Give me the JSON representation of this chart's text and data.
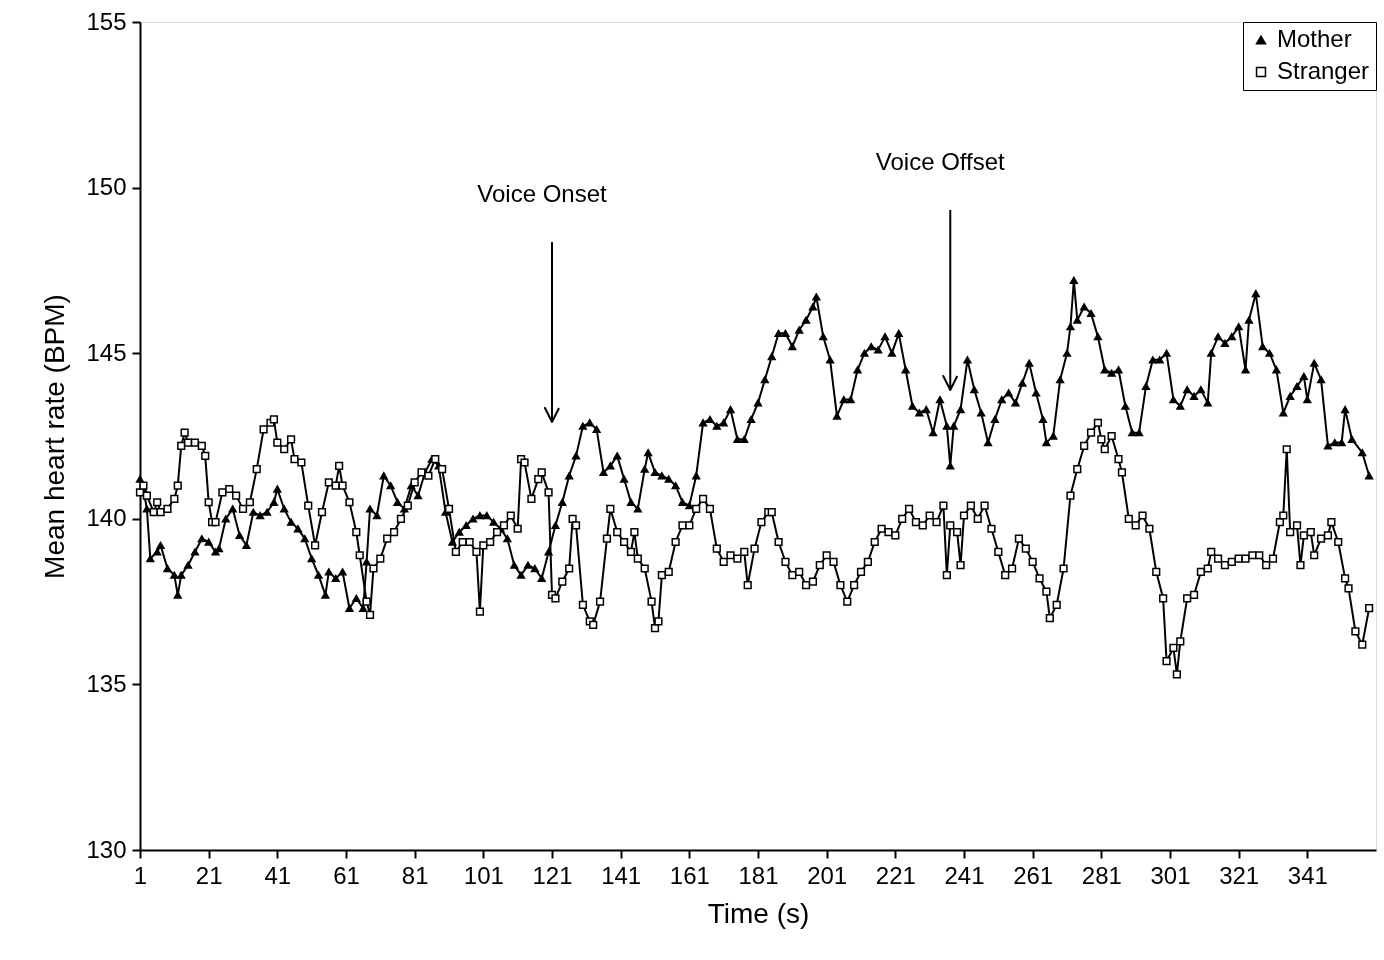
{
  "chart_data": {
    "type": "line",
    "xlabel": "Time (s)",
    "ylabel": "Mean heart rate (BPM)",
    "xlim": [
      1,
      361
    ],
    "ylim": [
      130,
      155
    ],
    "yticks": [
      130,
      135,
      140,
      145,
      150,
      155
    ],
    "xticks": [
      1,
      21,
      41,
      61,
      81,
      101,
      121,
      141,
      161,
      181,
      201,
      221,
      241,
      261,
      281,
      301,
      321,
      341
    ],
    "grid": false,
    "legend": "top right",
    "line_style": "solid",
    "ref_lines": [
      {
        "axis": "x",
        "value": 121,
        "label": "Voice Onset"
      },
      {
        "axis": "x",
        "value": 237,
        "label": "Voice Offset"
      }
    ],
    "series": [
      {
        "name": "Mother",
        "color": "#000000",
        "marker": "triangle",
        "x": [
          1,
          2,
          3,
          4,
          6,
          7,
          9,
          11,
          12,
          13,
          15,
          17,
          19,
          21,
          23,
          24,
          26,
          28,
          30,
          32,
          34,
          36,
          38,
          40,
          41,
          43,
          45,
          47,
          49,
          51,
          53,
          55,
          56,
          58,
          60,
          62,
          64,
          66,
          67,
          68,
          70,
          72,
          74,
          76,
          78,
          80,
          82,
          84,
          86,
          88,
          90,
          92,
          94,
          96,
          98,
          100,
          102,
          104,
          106,
          108,
          110,
          112,
          114,
          116,
          118,
          120,
          122,
          124,
          126,
          128,
          130,
          132,
          134,
          136,
          138,
          140,
          142,
          144,
          146,
          148,
          149,
          151,
          153,
          155,
          157,
          159,
          161,
          163,
          165,
          167,
          169,
          171,
          173,
          175,
          177,
          179,
          181,
          183,
          185,
          187,
          189,
          191,
          193,
          195,
          197,
          198,
          200,
          202,
          204,
          206,
          208,
          210,
          212,
          214,
          216,
          218,
          220,
          222,
          224,
          226,
          228,
          230,
          232,
          234,
          236,
          237,
          238,
          240,
          242,
          244,
          246,
          248,
          250,
          252,
          254,
          256,
          258,
          260,
          262,
          264,
          265,
          267,
          269,
          271,
          272,
          273,
          274,
          276,
          278,
          280,
          282,
          284,
          286,
          288,
          290,
          292,
          294,
          296,
          298,
          300,
          302,
          304,
          306,
          308,
          310,
          312,
          313,
          315,
          317,
          319,
          321,
          323,
          324,
          326,
          328,
          330,
          332,
          334,
          336,
          338,
          340,
          341,
          343,
          345,
          347,
          349,
          351,
          352,
          354,
          357,
          359
        ],
        "values": [
          141.2,
          140.9,
          140.3,
          138.8,
          139.0,
          139.2,
          138.5,
          138.3,
          137.7,
          138.3,
          138.6,
          139.0,
          139.4,
          139.3,
          139.0,
          139.1,
          140.0,
          140.3,
          139.5,
          139.2,
          140.2,
          140.1,
          140.2,
          140.5,
          140.9,
          140.3,
          139.9,
          139.7,
          139.4,
          138.8,
          138.3,
          137.7,
          138.4,
          138.2,
          138.4,
          137.3,
          137.6,
          137.3,
          138.7,
          140.3,
          140.1,
          141.3,
          141.0,
          140.5,
          140.3,
          141.0,
          140.7,
          141.4,
          141.8,
          141.6,
          140.2,
          139.3,
          139.6,
          139.8,
          140.0,
          140.1,
          140.1,
          139.9,
          139.7,
          139.4,
          138.6,
          138.3,
          138.6,
          138.5,
          138.2,
          139.0,
          139.8,
          140.5,
          141.3,
          141.9,
          142.8,
          142.9,
          142.7,
          141.4,
          141.6,
          141.9,
          141.2,
          140.5,
          140.3,
          141.5,
          142.0,
          141.4,
          141.3,
          141.2,
          141.0,
          140.5,
          140.4,
          141.3,
          142.9,
          143.0,
          142.8,
          142.9,
          143.3,
          142.4,
          142.4,
          143.0,
          143.5,
          144.2,
          144.9,
          145.6,
          145.6,
          145.2,
          145.7,
          146.0,
          146.4,
          146.7,
          145.5,
          144.8,
          143.1,
          143.6,
          143.6,
          144.5,
          145.0,
          145.2,
          145.1,
          145.5,
          145.0,
          145.6,
          144.5,
          143.4,
          143.2,
          143.3,
          142.6,
          143.6,
          142.8,
          141.6,
          142.8,
          143.3,
          144.8,
          143.9,
          143.2,
          142.3,
          143.0,
          143.6,
          143.8,
          143.5,
          144.1,
          144.7,
          143.8,
          143.0,
          142.3,
          142.5,
          144.2,
          145.0,
          145.8,
          147.2,
          146.0,
          146.4,
          146.2,
          145.5,
          144.5,
          144.4,
          144.5,
          143.4,
          142.6,
          142.6,
          144.0,
          144.8,
          144.8,
          145.0,
          143.6,
          143.4,
          143.9,
          143.7,
          143.9,
          143.5,
          145.0,
          145.5,
          145.3,
          145.5,
          145.8,
          144.5,
          146.0,
          146.8,
          145.2,
          145.0,
          144.5,
          143.2,
          143.7,
          144.0,
          144.3,
          143.6,
          144.7,
          144.2,
          142.2,
          142.3,
          142.3,
          143.3,
          142.4,
          142.0,
          141.3
        ]
      },
      {
        "name": "Stranger",
        "color": "#000000",
        "marker": "square",
        "x": [
          1,
          2,
          3,
          5,
          6,
          7,
          9,
          11,
          12,
          13,
          14,
          15,
          17,
          19,
          20,
          21,
          22,
          23,
          25,
          27,
          29,
          31,
          33,
          35,
          37,
          39,
          40,
          41,
          43,
          45,
          46,
          48,
          50,
          52,
          54,
          56,
          58,
          59,
          60,
          62,
          64,
          65,
          67,
          68,
          69,
          71,
          73,
          75,
          77,
          79,
          81,
          83,
          85,
          87,
          89,
          91,
          93,
          95,
          97,
          99,
          100,
          101,
          103,
          105,
          107,
          109,
          111,
          112,
          113,
          115,
          117,
          118,
          120,
          121,
          122,
          124,
          126,
          127,
          128,
          130,
          132,
          133,
          135,
          137,
          138,
          140,
          142,
          144,
          145,
          146,
          148,
          150,
          151,
          152,
          153,
          155,
          157,
          159,
          161,
          163,
          165,
          167,
          169,
          171,
          173,
          175,
          177,
          178,
          180,
          182,
          184,
          185,
          187,
          189,
          191,
          193,
          195,
          197,
          199,
          201,
          203,
          205,
          207,
          209,
          211,
          213,
          215,
          217,
          219,
          221,
          223,
          225,
          227,
          229,
          231,
          233,
          235,
          236,
          237,
          239,
          240,
          241,
          243,
          245,
          247,
          249,
          251,
          253,
          255,
          257,
          259,
          261,
          263,
          265,
          266,
          268,
          270,
          272,
          274,
          276,
          278,
          280,
          281,
          282,
          284,
          286,
          287,
          289,
          291,
          293,
          295,
          297,
          299,
          300,
          302,
          303,
          304,
          306,
          308,
          310,
          312,
          313,
          315,
          317,
          319,
          321,
          323,
          325,
          327,
          329,
          331,
          333,
          334,
          335,
          336,
          338,
          339,
          340,
          342,
          343,
          345,
          347,
          348,
          350,
          352,
          353,
          355,
          357,
          359
        ],
        "values": [
          140.8,
          141.0,
          140.7,
          140.2,
          140.5,
          140.2,
          140.3,
          140.6,
          141.0,
          142.2,
          142.6,
          142.3,
          142.3,
          142.2,
          141.9,
          140.5,
          139.9,
          139.9,
          140.8,
          140.9,
          140.7,
          140.3,
          140.5,
          141.5,
          142.7,
          142.9,
          143.0,
          142.3,
          142.1,
          142.4,
          141.8,
          141.7,
          140.4,
          139.2,
          140.2,
          141.1,
          141.0,
          141.6,
          141.0,
          140.5,
          139.6,
          138.9,
          137.5,
          137.1,
          138.5,
          138.8,
          139.4,
          139.6,
          140.0,
          140.4,
          141.1,
          141.4,
          141.3,
          141.8,
          141.5,
          140.3,
          139.0,
          139.3,
          139.3,
          139.0,
          137.2,
          139.2,
          139.3,
          139.6,
          139.8,
          140.1,
          139.7,
          141.8,
          141.7,
          140.6,
          141.2,
          141.4,
          140.8,
          137.7,
          137.6,
          138.1,
          138.5,
          140.0,
          139.8,
          137.4,
          136.9,
          136.8,
          137.5,
          139.4,
          140.3,
          139.6,
          139.3,
          139.0,
          139.6,
          138.8,
          138.5,
          137.5,
          136.7,
          136.9,
          138.3,
          138.4,
          139.3,
          139.8,
          139.8,
          140.3,
          140.6,
          140.3,
          139.1,
          138.7,
          138.9,
          138.8,
          139.0,
          138.0,
          139.1,
          139.9,
          140.2,
          140.2,
          139.3,
          138.7,
          138.3,
          138.4,
          138.0,
          138.1,
          138.6,
          138.9,
          138.7,
          138.0,
          137.5,
          138.0,
          138.4,
          138.7,
          139.3,
          139.7,
          139.6,
          139.5,
          140.0,
          140.3,
          139.9,
          139.8,
          140.1,
          139.9,
          140.4,
          138.3,
          139.8,
          139.6,
          138.6,
          140.1,
          140.4,
          140.0,
          140.4,
          139.7,
          139.0,
          138.3,
          138.5,
          139.4,
          139.1,
          138.7,
          138.2,
          137.8,
          137.0,
          137.4,
          138.5,
          140.7,
          141.5,
          142.2,
          142.6,
          142.9,
          142.4,
          142.1,
          142.5,
          141.8,
          141.4,
          140.0,
          139.8,
          140.1,
          139.7,
          138.4,
          137.6,
          135.7,
          136.1,
          135.3,
          136.3,
          137.6,
          137.7,
          138.4,
          138.5,
          139.0,
          138.8,
          138.6,
          138.7,
          138.8,
          138.8,
          138.9,
          138.9,
          138.6,
          138.8,
          139.9,
          140.1,
          142.1,
          139.6,
          139.8,
          138.6,
          139.5,
          139.6,
          138.9,
          139.4,
          139.5,
          139.9,
          139.3,
          138.2,
          137.9,
          136.6,
          136.2,
          137.3
        ]
      }
    ]
  }
}
